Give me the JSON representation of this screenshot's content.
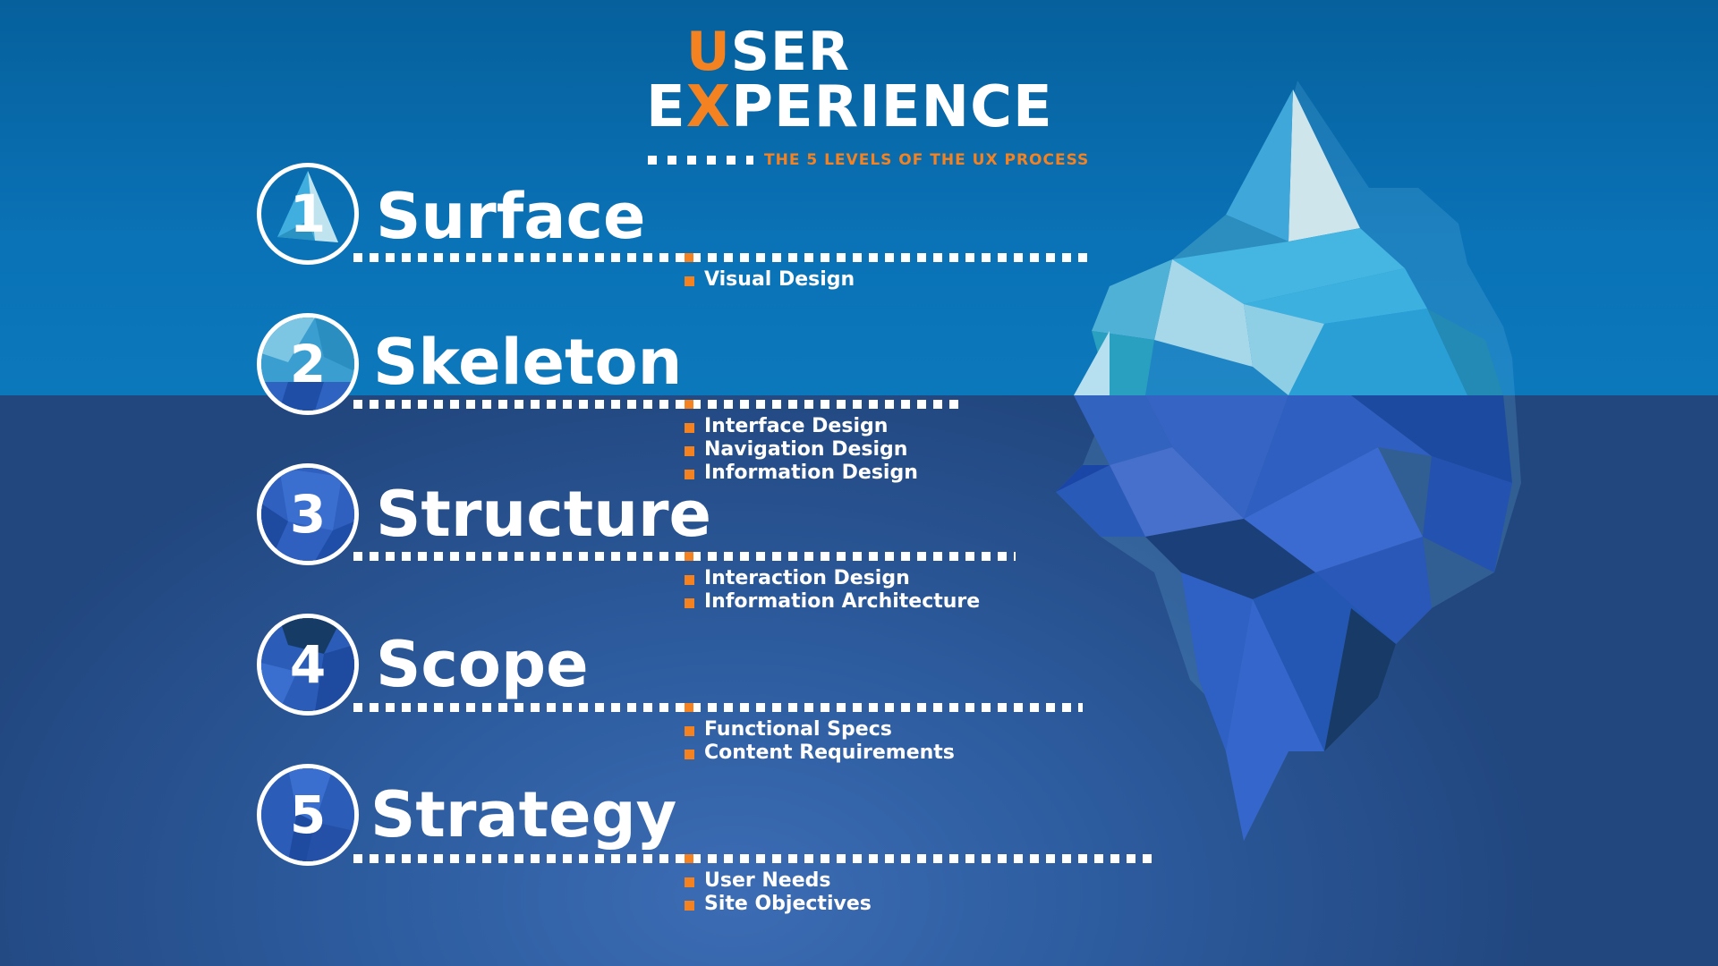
{
  "title": {
    "line1_accent": "U",
    "line1_rest": "SER",
    "line2_first": "E",
    "line2_accent": "X",
    "line2_rest": "PERIENCE",
    "subtitle": "THE 5 LEVELS OF THE UX PROCESS"
  },
  "colors": {
    "accent": "#f58220",
    "sky": "#0a70b4",
    "water": "#2d5c9f",
    "text": "#ffffff"
  },
  "levels": [
    {
      "number": "1",
      "name": "Surface",
      "items": [
        "Visual Design"
      ]
    },
    {
      "number": "2",
      "name": "Skeleton",
      "items": [
        "Interface Design",
        "Navigation Design",
        "Information Design"
      ]
    },
    {
      "number": "3",
      "name": "Structure",
      "items": [
        "Interaction Design",
        "Information Architecture"
      ]
    },
    {
      "number": "4",
      "name": "Scope",
      "items": [
        "Functional Specs",
        "Content Requirements"
      ]
    },
    {
      "number": "5",
      "name": "Strategy",
      "items": [
        "User Needs",
        "Site Objectives"
      ]
    }
  ],
  "illustration": {
    "icon": "iceberg-icon"
  }
}
